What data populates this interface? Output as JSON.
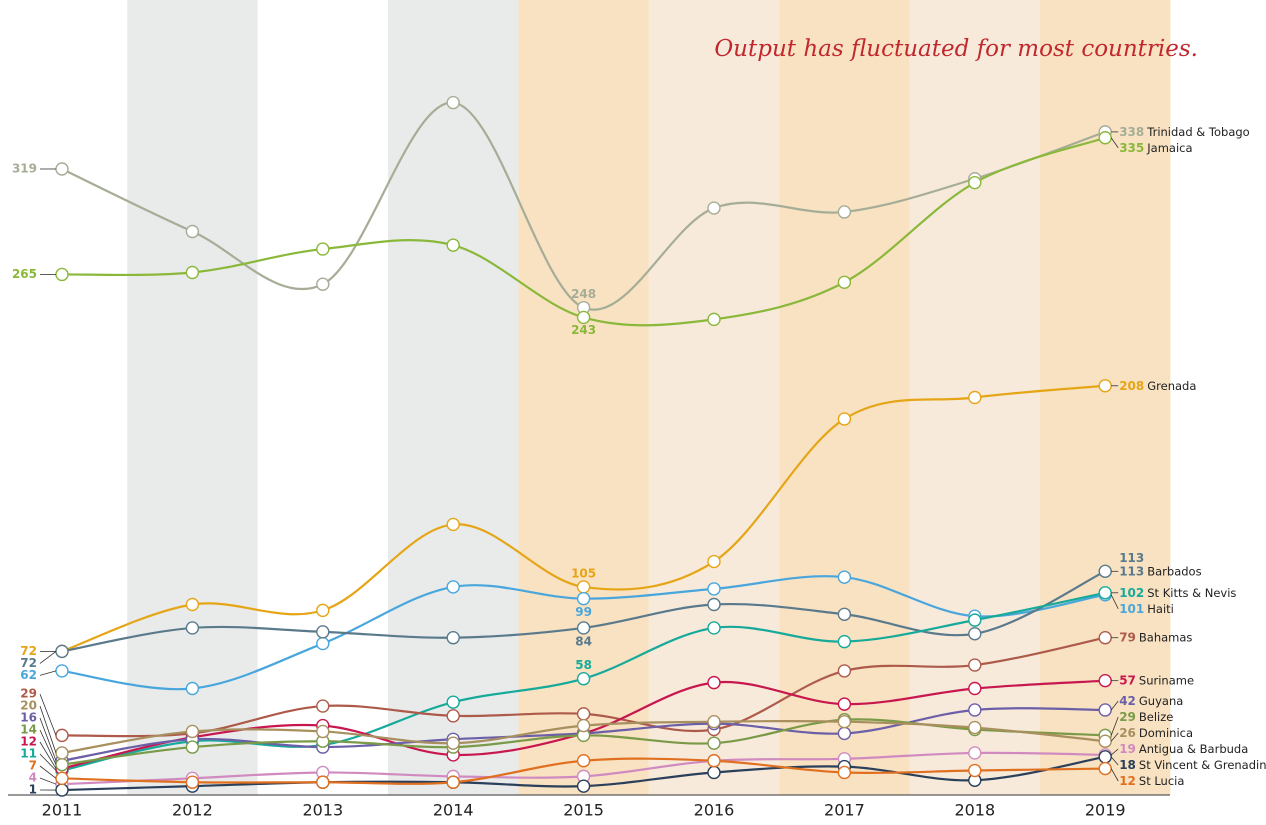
{
  "chart_data": {
    "type": "line",
    "annotation": "Output has fluctuated for most countries.",
    "categories": [
      "2011",
      "2012",
      "2013",
      "2014",
      "2015",
      "2016",
      "2017",
      "2018",
      "2019"
    ],
    "series": [
      {
        "name": "Trinidad & Tobago",
        "color": "#a6ad97",
        "values": [
          319,
          287,
          260,
          353,
          248,
          299,
          297,
          314,
          338
        ]
      },
      {
        "name": "Jamaica",
        "color": "#8ab83a",
        "values": [
          265,
          266,
          278,
          280,
          243,
          242,
          261,
          312,
          335
        ]
      },
      {
        "name": "Grenada",
        "color": "#e6a516",
        "values": [
          72,
          96,
          93,
          137,
          105,
          118,
          191,
          202,
          208
        ]
      },
      {
        "name": "Haiti",
        "color": "#49a6dc",
        "values": [
          62,
          53,
          76,
          105,
          99,
          104,
          110,
          90,
          101
        ]
      },
      {
        "name": "Barbados",
        "color": "#5a7a8c",
        "values": [
          72,
          84,
          82,
          79,
          84,
          96,
          91,
          81,
          113
        ]
      },
      {
        "name": "St Kitts & Nevis",
        "color": "#17aa9a",
        "values": [
          11,
          26,
          24,
          46,
          58,
          84,
          77,
          88,
          102
        ]
      },
      {
        "name": "Bahamas",
        "color": "#ad5a4a",
        "values": [
          29,
          30,
          44,
          39,
          40,
          32,
          62,
          65,
          79
        ]
      },
      {
        "name": "Suriname",
        "color": "#c8174f",
        "values": [
          12,
          28,
          34,
          19,
          30,
          56,
          45,
          53,
          57
        ]
      },
      {
        "name": "Guyana",
        "color": "#6c5fa8",
        "values": [
          16,
          27,
          23,
          27,
          30,
          35,
          30,
          42,
          42
        ]
      },
      {
        "name": "Belize",
        "color": "#7a9a48",
        "values": [
          14,
          23,
          26,
          23,
          29,
          25,
          37,
          32,
          29
        ]
      },
      {
        "name": "Dominica",
        "color": "#a88f5e",
        "values": [
          20,
          31,
          31,
          25,
          34,
          36,
          36,
          33,
          26
        ]
      },
      {
        "name": "Antigua & Barbuda",
        "color": "#d08abf",
        "values": [
          4,
          7,
          10,
          8,
          8,
          16,
          17,
          20,
          19
        ]
      },
      {
        "name": "St Vincent & Grenadines",
        "color": "#2a3f5a",
        "values": [
          1,
          3,
          5,
          5,
          3,
          10,
          13,
          6,
          18
        ]
      },
      {
        "name": "St Lucia",
        "color": "#e07020",
        "values": [
          7,
          5,
          5,
          5,
          16,
          16,
          10,
          11,
          12
        ]
      }
    ]
  }
}
